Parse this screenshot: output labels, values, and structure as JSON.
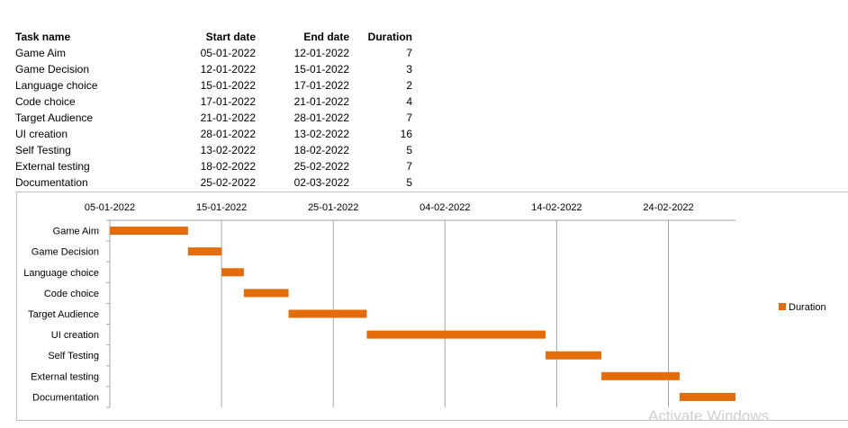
{
  "table": {
    "headers": {
      "name": "Task name",
      "start": "Start date",
      "end": "End date",
      "duration": "Duration"
    },
    "rows": [
      {
        "name": "Game Aim",
        "start": "05-01-2022",
        "end": "12-01-2022",
        "duration": "7"
      },
      {
        "name": "Game Decision",
        "start": "12-01-2022",
        "end": "15-01-2022",
        "duration": "3"
      },
      {
        "name": "Language choice",
        "start": "15-01-2022",
        "end": "17-01-2022",
        "duration": "2"
      },
      {
        "name": "Code choice",
        "start": "17-01-2022",
        "end": "21-01-2022",
        "duration": "4"
      },
      {
        "name": "Target Audience",
        "start": "21-01-2022",
        "end": "28-01-2022",
        "duration": "7"
      },
      {
        "name": "UI creation",
        "start": "28-01-2022",
        "end": "13-02-2022",
        "duration": "16"
      },
      {
        "name": "Self Testing",
        "start": "13-02-2022",
        "end": "18-02-2022",
        "duration": "5"
      },
      {
        "name": "External testing",
        "start": "18-02-2022",
        "end": "25-02-2022",
        "duration": "7"
      },
      {
        "name": "Documentation",
        "start": "25-02-2022",
        "end": "02-03-2022",
        "duration": "5"
      }
    ]
  },
  "chart_data": {
    "type": "bar",
    "orientation": "horizontal",
    "categories": [
      "Game Aim",
      "Game Decision",
      "Language choice",
      "Code choice",
      "Target Audience",
      "UI creation",
      "Self Testing",
      "External testing",
      "Documentation"
    ],
    "series": [
      {
        "name": "Duration",
        "color": "#e46c0a",
        "start": [
          "05-01-2022",
          "12-01-2022",
          "15-01-2022",
          "17-01-2022",
          "21-01-2022",
          "28-01-2022",
          "13-02-2022",
          "18-02-2022",
          "25-02-2022"
        ],
        "end": [
          "12-01-2022",
          "15-01-2022",
          "17-01-2022",
          "21-01-2022",
          "28-01-2022",
          "13-02-2022",
          "18-02-2022",
          "25-02-2022",
          "02-03-2022"
        ],
        "values": [
          7,
          3,
          2,
          4,
          7,
          16,
          5,
          7,
          5
        ]
      }
    ],
    "x_ticks": [
      "05-01-2022",
      "15-01-2022",
      "25-01-2022",
      "04-02-2022",
      "14-02-2022",
      "24-02-2022"
    ],
    "xlim": [
      "05-01-2022",
      "02-03-2022"
    ],
    "x_axis_position": "top",
    "grid": true,
    "legend": "right"
  },
  "watermark": "Activate Windows"
}
